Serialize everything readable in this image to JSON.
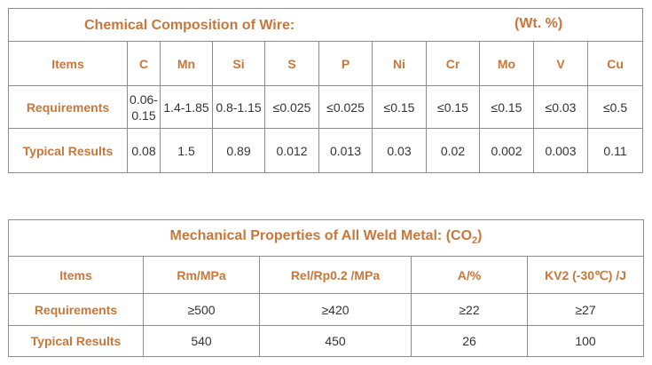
{
  "chem": {
    "title": "Chemical Composition of Wire:",
    "unit": "(Wt. %)",
    "headers": [
      "Items",
      "C",
      "Mn",
      "Si",
      "S",
      "P",
      "Ni",
      "Cr",
      "Mo",
      "V",
      "Cu"
    ],
    "requirements": [
      "Requirements",
      "0.06-0.15",
      "1.4-1.85",
      "0.8-1.15",
      "≤0.025",
      "≤0.025",
      "≤0.15",
      "≤0.15",
      "≤0.15",
      "≤0.03",
      "≤0.5"
    ],
    "typical": [
      "Typical Results",
      "0.08",
      "1.5",
      "0.89",
      "0.012",
      "0.013",
      "0.03",
      "0.02",
      "0.002",
      "0.003",
      "0.11"
    ]
  },
  "mech": {
    "title_prefix": "Mechanical Properties of All Weld Metal: (CO",
    "title_sub": "2",
    "title_suffix": ")",
    "headers": [
      "Items",
      "Rm/MPa",
      "Rel/Rp0.2 /MPa",
      "A/%",
      "KV2 (-30℃) /J"
    ],
    "requirements": [
      "Requirements",
      "≥500",
      "≥420",
      "≥22",
      "≥27"
    ],
    "typical": [
      "Typical Results",
      "540",
      "450",
      "26",
      "100"
    ]
  }
}
